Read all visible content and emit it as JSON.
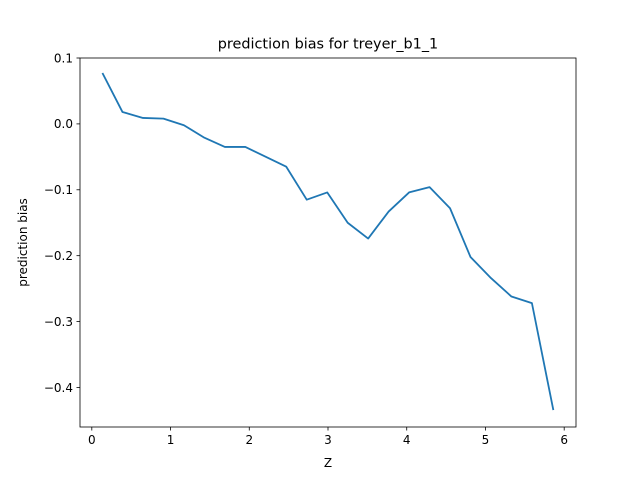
{
  "chart_data": {
    "type": "line",
    "title": "prediction bias for treyer_b1_1",
    "xlabel": "Z",
    "ylabel": "prediction bias",
    "xlim": [
      -0.15,
      6.15
    ],
    "ylim": [
      -0.46,
      0.1
    ],
    "xticks": [
      0,
      1,
      2,
      3,
      4,
      5,
      6
    ],
    "xtick_labels": [
      "0",
      "1",
      "2",
      "3",
      "4",
      "5",
      "6"
    ],
    "yticks": [
      0.1,
      0.0,
      -0.1,
      -0.2,
      -0.3,
      -0.4
    ],
    "ytick_labels": [
      "0.1",
      "0.0",
      "−0.1",
      "−0.2",
      "−0.3",
      "−0.4"
    ],
    "grid": false,
    "legend": "none",
    "series": [
      {
        "color": "#1f77b4",
        "x": [
          0.14,
          0.39,
          0.65,
          0.91,
          1.17,
          1.43,
          1.69,
          1.95,
          2.21,
          2.47,
          2.73,
          2.99,
          3.25,
          3.51,
          3.77,
          4.03,
          4.29,
          4.55,
          4.81,
          5.07,
          5.33,
          5.59,
          5.86
        ],
        "values": [
          0.076,
          0.018,
          0.009,
          0.008,
          -0.002,
          -0.021,
          -0.035,
          -0.035,
          -0.05,
          -0.065,
          -0.115,
          -0.104,
          -0.15,
          -0.174,
          -0.133,
          -0.104,
          -0.096,
          -0.128,
          -0.202,
          -0.234,
          -0.262,
          -0.272,
          -0.433
        ]
      }
    ]
  }
}
